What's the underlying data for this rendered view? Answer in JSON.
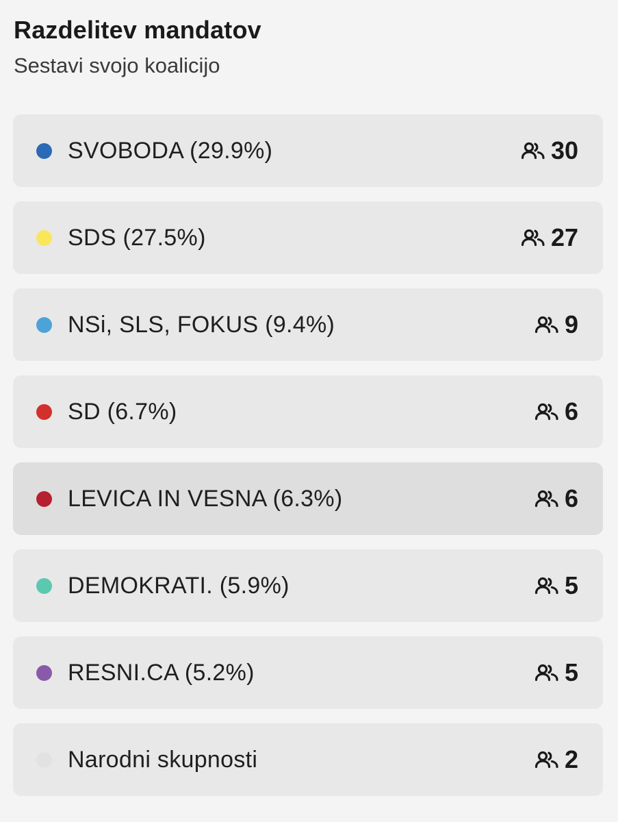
{
  "header": {
    "title": "Razdelitev mandatov",
    "subtitle": "Sestavi svojo koalicijo"
  },
  "seat_icon": "people-icon",
  "parties": [
    {
      "label": "SVOBODA (29.9%)",
      "seats": "30",
      "color": "#2a6ab6"
    },
    {
      "label": "SDS (27.5%)",
      "seats": "27",
      "color": "#fae65b"
    },
    {
      "label": "NSi, SLS, FOKUS (9.4%)",
      "seats": "9",
      "color": "#4da3d8"
    },
    {
      "label": "SD (6.7%)",
      "seats": "6",
      "color": "#d2302a"
    },
    {
      "label": "LEVICA IN VESNA (6.3%)",
      "seats": "6",
      "color": "#b72030"
    },
    {
      "label": "DEMOKRATI. (5.9%)",
      "seats": "5",
      "color": "#5cc8b0"
    },
    {
      "label": "RESNI.CA (5.2%)",
      "seats": "5",
      "color": "#8a5aaa"
    },
    {
      "label": "Narodni skupnosti",
      "seats": "2",
      "color": "#e2e2e2"
    }
  ]
}
